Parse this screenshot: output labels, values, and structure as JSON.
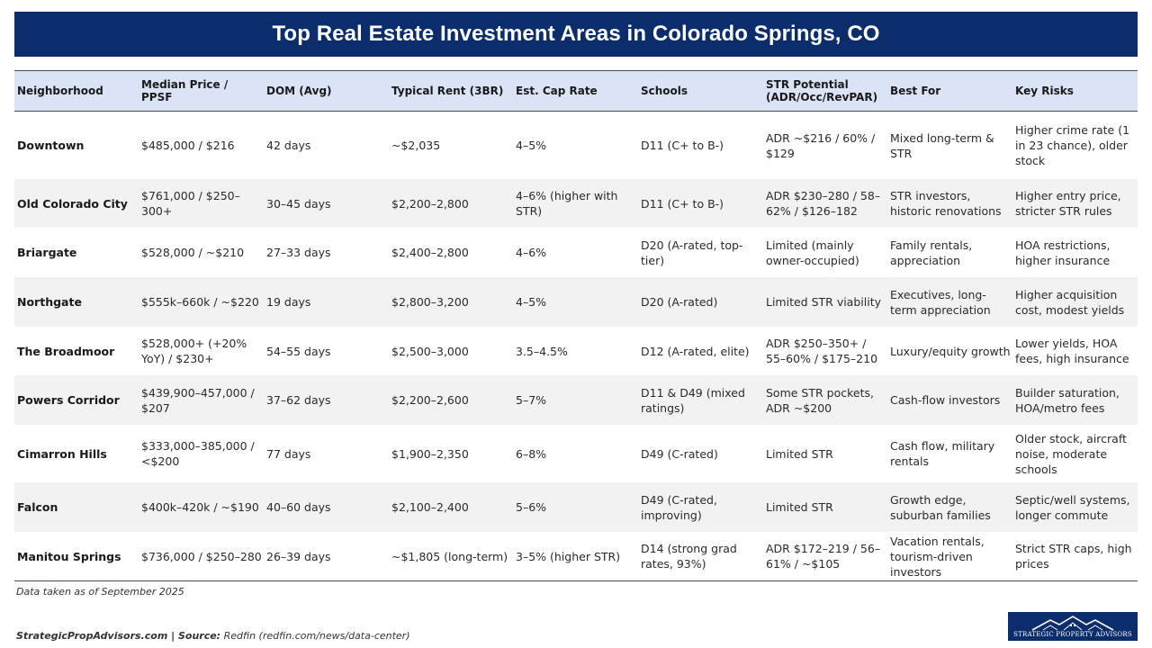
{
  "title": "Top Real Estate Investment Areas in Colorado Springs, CO",
  "columns": [
    "Neighborhood",
    "Median Price / PPSF",
    "DOM (Avg)",
    "Typical Rent (3BR)",
    "Est. Cap Rate",
    "Schools",
    "STR Potential (ADR/Occ/RevPAR)",
    "Best For",
    "Key Risks"
  ],
  "rows": [
    [
      "Downtown",
      "$485,000 / $216",
      "42 days",
      "~$2,035",
      "4–5%",
      "D11 (C+ to B-)",
      "ADR ~$216 / 60% / $129",
      "Mixed long-term & STR",
      "Higher crime rate (1 in 23 chance), older stock"
    ],
    [
      "Old Colorado City",
      "$761,000 / $250–300+",
      "30–45 days",
      "$2,200–2,800",
      "4–6% (higher with STR)",
      "D11 (C+ to B-)",
      "ADR $230–280 / 58–62% / $126–182",
      "STR investors, historic renovations",
      "Higher entry price, stricter STR rules"
    ],
    [
      "Briargate",
      "$528,000 / ~$210",
      "27–33 days",
      "$2,400–2,800",
      "4–6%",
      "D20 (A-rated, top-tier)",
      "Limited (mainly owner-occupied)",
      "Family rentals, appreciation",
      "HOA restrictions, higher insurance"
    ],
    [
      "Northgate",
      "$555k–660k / ~$220",
      "19 days",
      "$2,800–3,200",
      "4–5%",
      "D20 (A-rated)",
      "Limited STR viability",
      "Executives, long-term appreciation",
      "Higher acquisition cost, modest yields"
    ],
    [
      "The Broadmoor",
      "$528,000+ (+20% YoY) / $230+",
      "54–55 days",
      "$2,500–3,000",
      "3.5–4.5%",
      "D12 (A-rated, elite)",
      "ADR $250–350+ / 55–60% / $175–210",
      "Luxury/equity growth",
      "Lower yields, HOA fees, high insurance"
    ],
    [
      "Powers Corridor",
      "$439,900–457,000 / $207",
      "37–62 days",
      "$2,200–2,600",
      "5–7%",
      "D11 & D49 (mixed ratings)",
      "Some STR pockets, ADR ~$200",
      "Cash-flow investors",
      "Builder saturation, HOA/metro fees"
    ],
    [
      "Cimarron Hills",
      "$333,000–385,000 / <$200",
      "77 days",
      "$1,900–2,350",
      "6–8%",
      "D49 (C-rated)",
      "Limited STR",
      "Cash flow, military rentals",
      "Older stock, aircraft noise, moderate schools"
    ],
    [
      "Falcon",
      "$400k–420k / ~$190",
      "40–60 days",
      "$2,100–2,400",
      "5–6%",
      "D49 (C-rated, improving)",
      "Limited STR",
      "Growth edge, suburban families",
      "Septic/well systems, longer commute"
    ],
    [
      "Manitou Springs",
      "$736,000 / $250–280",
      "26–39 days",
      "~$1,805 (long-term)",
      "3–5% (higher STR)",
      "D14 (strong grad rates, 93%)",
      "ADR $172–219 / 56–61% / ~$105",
      "Vacation rentals, tourism-driven investors",
      "Strict STR caps, high prices"
    ]
  ],
  "footnote": "Data taken as of September 2025",
  "source": {
    "site": "StrategicPropAdvisors.com",
    "separator": " | ",
    "label": "Source:",
    "text": " Redfin (redfin.com/news/data-center)"
  },
  "logo": {
    "icon": "house-roofline-icon",
    "text": "STRATEGIC PROPERTY ADVISORS"
  },
  "colors": {
    "banner": "#0c2d6b",
    "header_row": "#dbe4f7",
    "stripe": "#f2f2f2"
  }
}
